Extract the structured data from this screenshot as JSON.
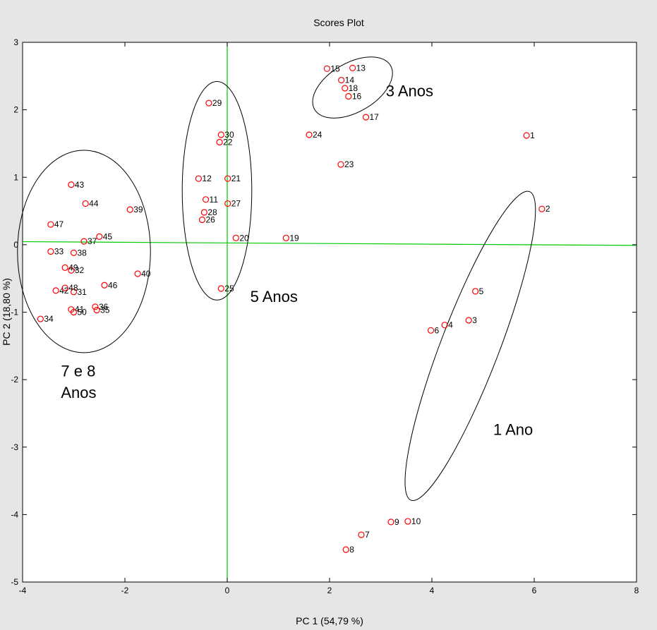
{
  "window": {
    "background": "#e6e6e6"
  },
  "chart_data": {
    "type": "scatter",
    "title": "Scores Plot",
    "xlabel": "PC 1 (54,79 %)",
    "ylabel": "PC 2 (18,80 %)",
    "xlim": [
      -4,
      8
    ],
    "ylim": [
      -5,
      3
    ],
    "xticks": [
      "-4",
      "-2",
      "0",
      "2",
      "4",
      "6",
      "8"
    ],
    "yticks": [
      "3",
      "2",
      "1",
      "0",
      "-1",
      "-2",
      "-3",
      "-4",
      "-5"
    ],
    "grid": false,
    "marker": "circle",
    "marker_color": "#ff0000",
    "reference_line_color": "#00c800",
    "points": [
      {
        "label": "1",
        "x": 5.85,
        "y": 1.62
      },
      {
        "label": "2",
        "x": 6.15,
        "y": 0.53
      },
      {
        "label": "3",
        "x": 4.72,
        "y": -1.12
      },
      {
        "label": "4",
        "x": 4.25,
        "y": -1.19
      },
      {
        "label": "5",
        "x": 4.85,
        "y": -0.69
      },
      {
        "label": "6",
        "x": 3.98,
        "y": -1.27
      },
      {
        "label": "7",
        "x": 2.62,
        "y": -4.3
      },
      {
        "label": "8",
        "x": 2.32,
        "y": -4.52
      },
      {
        "label": "9",
        "x": 3.2,
        "y": -4.11
      },
      {
        "label": "10",
        "x": 3.53,
        "y": -4.1
      },
      {
        "label": "11",
        "x": -0.42,
        "y": 0.67
      },
      {
        "label": "12",
        "x": -0.56,
        "y": 0.98
      },
      {
        "label": "13",
        "x": 2.45,
        "y": 2.62
      },
      {
        "label": "14",
        "x": 2.23,
        "y": 2.44
      },
      {
        "label": "15",
        "x": 1.95,
        "y": 2.61
      },
      {
        "label": "16",
        "x": 2.37,
        "y": 2.2
      },
      {
        "label": "17",
        "x": 2.71,
        "y": 1.89
      },
      {
        "label": "18",
        "x": 2.3,
        "y": 2.32
      },
      {
        "label": "19",
        "x": 1.15,
        "y": 0.1
      },
      {
        "label": "20",
        "x": 0.17,
        "y": 0.1
      },
      {
        "label": "21",
        "x": 0.01,
        "y": 0.98
      },
      {
        "label": "22",
        "x": -0.15,
        "y": 1.52
      },
      {
        "label": "23",
        "x": 2.22,
        "y": 1.19
      },
      {
        "label": "24",
        "x": 1.6,
        "y": 1.63
      },
      {
        "label": "25",
        "x": -0.12,
        "y": -0.65
      },
      {
        "label": "26",
        "x": -0.49,
        "y": 0.37
      },
      {
        "label": "27",
        "x": 0.01,
        "y": 0.61
      },
      {
        "label": "28",
        "x": -0.45,
        "y": 0.48
      },
      {
        "label": "29",
        "x": -0.36,
        "y": 2.1
      },
      {
        "label": "30",
        "x": -0.12,
        "y": 1.63
      },
      {
        "label": "31",
        "x": -3.0,
        "y": -0.7
      },
      {
        "label": "32",
        "x": -3.05,
        "y": -0.38
      },
      {
        "label": "33",
        "x": -3.45,
        "y": -0.1
      },
      {
        "label": "34",
        "x": -3.65,
        "y": -1.1
      },
      {
        "label": "35",
        "x": -2.55,
        "y": -0.97
      },
      {
        "label": "36",
        "x": -2.58,
        "y": -0.92
      },
      {
        "label": "37",
        "x": -2.8,
        "y": 0.05
      },
      {
        "label": "38",
        "x": -3.0,
        "y": -0.12
      },
      {
        "label": "39",
        "x": -1.9,
        "y": 0.52
      },
      {
        "label": "40",
        "x": -1.75,
        "y": -0.43
      },
      {
        "label": "41",
        "x": -3.05,
        "y": -0.96
      },
      {
        "label": "42",
        "x": -3.35,
        "y": -0.68
      },
      {
        "label": "43",
        "x": -3.05,
        "y": 0.89
      },
      {
        "label": "44",
        "x": -2.77,
        "y": 0.61
      },
      {
        "label": "45",
        "x": -2.5,
        "y": 0.12
      },
      {
        "label": "46",
        "x": -2.4,
        "y": -0.6
      },
      {
        "label": "47",
        "x": -3.45,
        "y": 0.3
      },
      {
        "label": "48",
        "x": -3.17,
        "y": -0.64
      },
      {
        "label": "49",
        "x": -3.17,
        "y": -0.34
      },
      {
        "label": "50",
        "x": -3.0,
        "y": -1.0
      }
    ],
    "groups": [
      {
        "name": "1 Ano",
        "center": [
          4.75,
          -1.5
        ],
        "rx": 2.45,
        "ry": 0.57,
        "angle_deg": -69
      },
      {
        "name": "3 Anos",
        "center": [
          2.45,
          2.33
        ],
        "rx": 0.65,
        "ry": 0.48,
        "angle_deg": -30
      },
      {
        "name": "5 Anos",
        "center": [
          -0.2,
          0.8
        ],
        "rx": 0.68,
        "ry": 1.62,
        "angle_deg": 0
      },
      {
        "name": "7 e 8 Anos",
        "center": [
          -2.8,
          -0.1
        ],
        "rx": 1.3,
        "ry": 1.5,
        "angle_deg": 0
      }
    ],
    "annotations": [
      {
        "text": "3 Anos",
        "x": 3.1,
        "y": 2.2
      },
      {
        "text": "5 Anos",
        "x": 0.45,
        "y": -0.85
      },
      {
        "text": "1 Ano",
        "x": 5.2,
        "y": -2.82
      },
      {
        "text": "7 e 8",
        "x": -3.25,
        "y": -1.95
      },
      {
        "text": "Anos",
        "x": -3.25,
        "y": -2.27
      }
    ]
  }
}
